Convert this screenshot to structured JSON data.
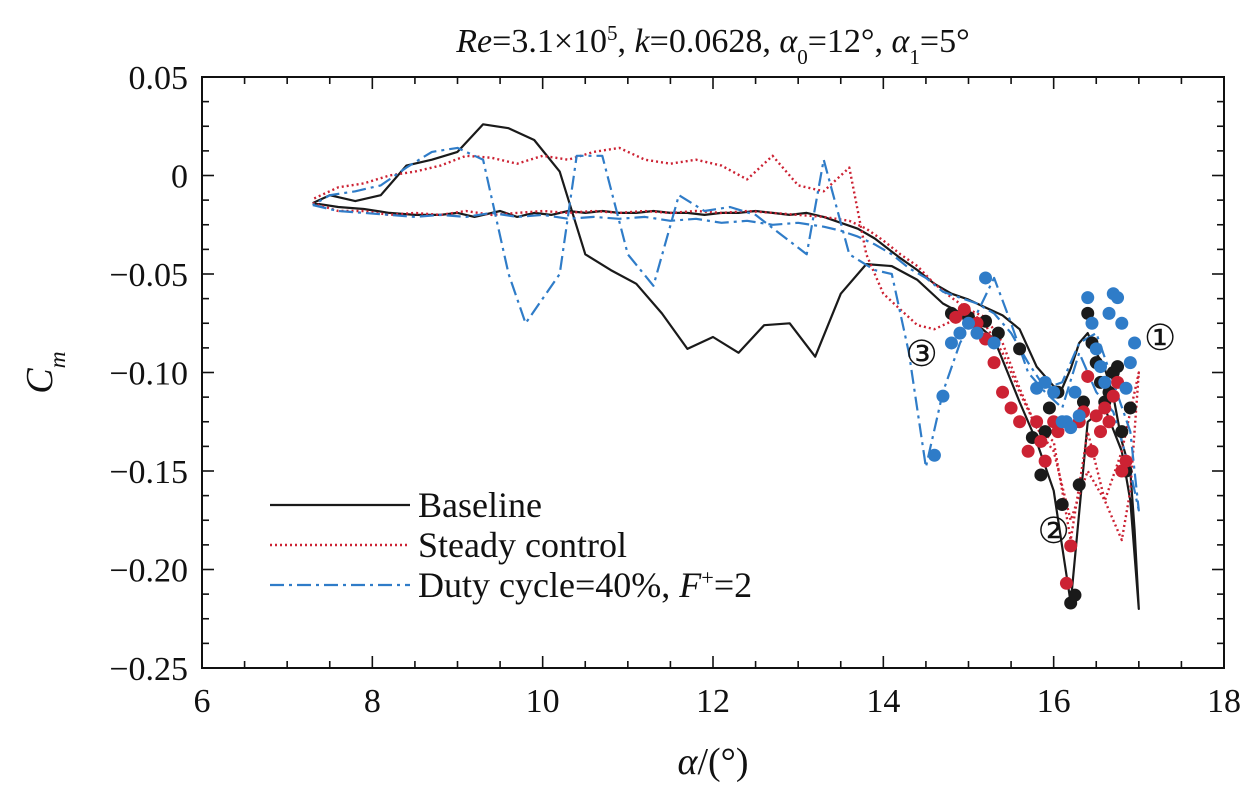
{
  "chart_data": {
    "type": "line",
    "title": {
      "parts": [
        {
          "text": "Re",
          "italic": true
        },
        {
          "text": "=3.1×10"
        },
        {
          "text": "5",
          "sup": true
        },
        {
          "text": ", "
        },
        {
          "text": "k",
          "italic": true
        },
        {
          "text": "=0.0628, "
        },
        {
          "text": "α",
          "italic": true
        },
        {
          "text": "0",
          "sub": true
        },
        {
          "text": "=12°, "
        },
        {
          "text": "α",
          "italic": true
        },
        {
          "text": "1",
          "sub": true
        },
        {
          "text": "=5°"
        }
      ]
    },
    "xlabel": {
      "parts": [
        {
          "text": "α",
          "italic": true
        },
        {
          "text": "/(°)"
        }
      ]
    },
    "ylabel": {
      "parts": [
        {
          "text": "C",
          "italic": true
        },
        {
          "text": "m",
          "italic": true,
          "sub": true
        }
      ]
    },
    "xlim": [
      6,
      18
    ],
    "ylim": [
      -0.25,
      0.05
    ],
    "xticks": [
      6,
      8,
      10,
      12,
      14,
      16,
      18
    ],
    "xtick_labels": [
      "6",
      "8",
      "10",
      "12",
      "14",
      "16",
      "18"
    ],
    "yticks": [
      0.05,
      0,
      -0.05,
      -0.1,
      -0.15,
      -0.2,
      -0.25
    ],
    "ytick_labels": [
      "0.05",
      "0",
      "−0.05",
      "−0.10",
      "−0.15",
      "−0.20",
      "−0.25"
    ],
    "minor_x_step": 0.5,
    "minor_y_step": 0.0125,
    "grid": false,
    "legend_position": "bottom-left",
    "annotations": [
      {
        "text": "①",
        "x": 17.25,
        "y": -0.082
      },
      {
        "text": "②",
        "x": 16.0,
        "y": -0.18
      },
      {
        "text": "③",
        "x": 14.45,
        "y": -0.09
      }
    ],
    "series": [
      {
        "name": "Baseline",
        "color": "#1a1a1a",
        "style": "solid",
        "x": [
          7.3,
          7.6,
          7.9,
          8.2,
          8.5,
          8.8,
          9.0,
          9.2,
          9.5,
          9.7,
          9.9,
          10.1,
          10.3,
          10.5,
          10.7,
          10.9,
          11.1,
          11.3,
          11.5,
          11.7,
          11.9,
          12.1,
          12.3,
          12.5,
          12.7,
          12.9,
          13.1,
          13.3,
          13.5,
          13.7,
          13.9,
          14.05,
          14.2,
          14.4,
          14.6,
          14.8,
          15.0,
          15.2,
          15.4,
          15.6,
          15.8,
          16.0,
          16.1,
          16.2,
          16.3,
          16.4,
          16.5,
          16.6,
          16.7,
          16.8,
          16.9,
          16.95,
          17.0,
          16.9,
          16.8,
          16.6,
          16.4,
          16.2,
          16.0,
          15.8,
          15.6,
          15.3,
          15.0,
          14.7,
          14.4,
          14.1,
          13.8,
          13.5,
          13.2,
          12.9,
          12.6,
          12.3,
          12.0,
          11.7,
          11.4,
          11.1,
          10.8,
          10.5,
          10.2,
          9.9,
          9.6,
          9.3,
          9.0,
          8.7,
          8.4,
          8.1,
          7.8,
          7.5,
          7.3
        ],
        "y": [
          -0.014,
          -0.016,
          -0.017,
          -0.019,
          -0.02,
          -0.02,
          -0.019,
          -0.021,
          -0.018,
          -0.021,
          -0.019,
          -0.02,
          -0.018,
          -0.019,
          -0.018,
          -0.019,
          -0.019,
          -0.018,
          -0.019,
          -0.019,
          -0.02,
          -0.019,
          -0.019,
          -0.018,
          -0.019,
          -0.02,
          -0.019,
          -0.021,
          -0.024,
          -0.027,
          -0.032,
          -0.037,
          -0.042,
          -0.048,
          -0.055,
          -0.06,
          -0.063,
          -0.067,
          -0.071,
          -0.078,
          -0.097,
          -0.107,
          -0.108,
          -0.098,
          -0.085,
          -0.08,
          -0.09,
          -0.098,
          -0.112,
          -0.135,
          -0.15,
          -0.18,
          -0.22,
          -0.165,
          -0.14,
          -0.118,
          -0.125,
          -0.217,
          -0.16,
          -0.135,
          -0.115,
          -0.083,
          -0.072,
          -0.065,
          -0.053,
          -0.046,
          -0.045,
          -0.06,
          -0.092,
          -0.075,
          -0.076,
          -0.09,
          -0.082,
          -0.088,
          -0.07,
          -0.055,
          -0.048,
          -0.04,
          0.002,
          0.018,
          0.024,
          0.026,
          0.012,
          0.008,
          0.005,
          -0.01,
          -0.013,
          -0.01,
          -0.014
        ]
      },
      {
        "name": "Steady control",
        "color": "#cc2233",
        "style": "dotted",
        "x": [
          7.3,
          7.6,
          7.9,
          8.2,
          8.5,
          8.8,
          9.1,
          9.4,
          9.7,
          10.0,
          10.3,
          10.6,
          10.9,
          11.2,
          11.5,
          11.8,
          12.1,
          12.4,
          12.7,
          13.0,
          13.3,
          13.6,
          13.8,
          14.0,
          14.2,
          14.4,
          14.6,
          14.8,
          15.0,
          15.2,
          15.4,
          15.6,
          15.8,
          16.0,
          16.2,
          16.4,
          16.6,
          16.8,
          16.9,
          17.0,
          16.9,
          16.8,
          16.6,
          16.4,
          16.2,
          16.0,
          15.8,
          15.6,
          15.4,
          15.2,
          15.0,
          14.8,
          14.6,
          14.4,
          14.2,
          14.0,
          13.8,
          13.6,
          13.3,
          13.0,
          12.7,
          12.4,
          12.1,
          11.8,
          11.5,
          11.2,
          10.9,
          10.6,
          10.3,
          10.0,
          9.7,
          9.4,
          9.1,
          8.8,
          8.5,
          8.2,
          7.9,
          7.6,
          7.3
        ],
        "y": [
          -0.014,
          -0.018,
          -0.018,
          -0.02,
          -0.019,
          -0.02,
          -0.018,
          -0.02,
          -0.019,
          -0.018,
          -0.019,
          -0.018,
          -0.019,
          -0.018,
          -0.019,
          -0.018,
          -0.019,
          -0.018,
          -0.019,
          -0.02,
          -0.021,
          -0.023,
          -0.027,
          -0.033,
          -0.04,
          -0.046,
          -0.055,
          -0.062,
          -0.068,
          -0.076,
          -0.09,
          -0.11,
          -0.128,
          -0.14,
          -0.175,
          -0.15,
          -0.165,
          -0.185,
          -0.16,
          -0.1,
          -0.12,
          -0.14,
          -0.165,
          -0.13,
          -0.185,
          -0.135,
          -0.128,
          -0.108,
          -0.085,
          -0.072,
          -0.068,
          -0.074,
          -0.078,
          -0.076,
          -0.068,
          -0.06,
          -0.04,
          0.004,
          -0.008,
          -0.005,
          0.01,
          -0.002,
          0.005,
          0.008,
          0.006,
          0.008,
          0.014,
          0.012,
          0.008,
          0.01,
          0.006,
          0.009,
          0.01,
          0.005,
          0.002,
          0.0,
          -0.004,
          -0.006,
          -0.012
        ]
      },
      {
        "name": "Duty cycle=40%, F⁺=2",
        "legend_parts": [
          {
            "text": "Duty cycle=40%, "
          },
          {
            "text": "F",
            "italic": true
          },
          {
            "text": "+",
            "sup": true
          },
          {
            "text": "=2"
          }
        ],
        "color": "#2f7cc8",
        "style": "dashdot",
        "x": [
          7.3,
          7.6,
          7.9,
          8.2,
          8.5,
          8.8,
          9.1,
          9.4,
          9.7,
          10.0,
          10.3,
          10.6,
          10.9,
          11.2,
          11.5,
          11.8,
          12.1,
          12.4,
          12.7,
          13.0,
          13.3,
          13.5,
          13.7,
          13.9,
          14.1,
          14.3,
          14.5,
          14.7,
          14.9,
          15.1,
          15.3,
          15.5,
          15.7,
          15.9,
          16.1,
          16.3,
          16.5,
          16.7,
          16.9,
          17.0,
          16.9,
          16.7,
          16.5,
          16.3,
          16.1,
          15.9,
          15.7,
          15.5,
          15.3,
          15.1,
          14.9,
          14.7,
          14.5,
          14.3,
          14.1,
          13.9,
          13.6,
          13.3,
          13.1,
          12.8,
          12.5,
          12.2,
          11.9,
          11.6,
          11.3,
          11.0,
          10.7,
          10.4,
          10.2,
          9.8,
          9.6,
          9.3,
          9.0,
          8.7,
          8.4,
          8.1,
          7.8,
          7.5,
          7.3
        ],
        "y": [
          -0.015,
          -0.018,
          -0.019,
          -0.02,
          -0.021,
          -0.02,
          -0.021,
          -0.019,
          -0.021,
          -0.02,
          -0.022,
          -0.021,
          -0.022,
          -0.021,
          -0.023,
          -0.022,
          -0.024,
          -0.023,
          -0.025,
          -0.024,
          -0.026,
          -0.028,
          -0.031,
          -0.035,
          -0.04,
          -0.047,
          -0.052,
          -0.059,
          -0.062,
          -0.065,
          -0.07,
          -0.08,
          -0.095,
          -0.108,
          -0.105,
          -0.085,
          -0.08,
          -0.105,
          -0.13,
          -0.17,
          -0.15,
          -0.12,
          -0.11,
          -0.09,
          -0.118,
          -0.11,
          -0.1,
          -0.075,
          -0.052,
          -0.07,
          -0.085,
          -0.11,
          -0.148,
          -0.09,
          -0.05,
          -0.048,
          -0.04,
          0.008,
          -0.04,
          -0.03,
          -0.02,
          -0.016,
          -0.018,
          -0.01,
          -0.056,
          -0.04,
          0.01,
          0.01,
          -0.05,
          -0.075,
          -0.05,
          0.008,
          0.014,
          0.012,
          0.004,
          -0.005,
          -0.008,
          -0.01,
          -0.015
        ]
      }
    ],
    "marker_series": [
      {
        "name": "Baseline",
        "color": "#1a1a1a",
        "points": [
          [
            14.8,
            -0.07
          ],
          [
            15.0,
            -0.072
          ],
          [
            15.2,
            -0.074
          ],
          [
            15.35,
            -0.08
          ],
          [
            15.6,
            -0.088
          ],
          [
            15.75,
            -0.133
          ],
          [
            15.85,
            -0.152
          ],
          [
            15.9,
            -0.13
          ],
          [
            15.95,
            -0.118
          ],
          [
            16.05,
            -0.11
          ],
          [
            16.1,
            -0.167
          ],
          [
            16.2,
            -0.217
          ],
          [
            16.25,
            -0.213
          ],
          [
            16.3,
            -0.157
          ],
          [
            16.35,
            -0.115
          ],
          [
            16.4,
            -0.07
          ],
          [
            16.45,
            -0.085
          ],
          [
            16.5,
            -0.095
          ],
          [
            16.55,
            -0.105
          ],
          [
            16.6,
            -0.115
          ],
          [
            16.65,
            -0.11
          ],
          [
            16.7,
            -0.1
          ],
          [
            16.75,
            -0.097
          ],
          [
            16.8,
            -0.13
          ],
          [
            16.85,
            -0.15
          ],
          [
            16.9,
            -0.118
          ]
        ]
      },
      {
        "name": "Steady control",
        "color": "#cc2233",
        "points": [
          [
            14.85,
            -0.072
          ],
          [
            14.95,
            -0.068
          ],
          [
            15.1,
            -0.075
          ],
          [
            15.2,
            -0.083
          ],
          [
            15.3,
            -0.095
          ],
          [
            15.4,
            -0.11
          ],
          [
            15.5,
            -0.118
          ],
          [
            15.6,
            -0.125
          ],
          [
            15.7,
            -0.14
          ],
          [
            15.8,
            -0.125
          ],
          [
            15.85,
            -0.135
          ],
          [
            15.9,
            -0.145
          ],
          [
            16.0,
            -0.125
          ],
          [
            16.05,
            -0.13
          ],
          [
            16.15,
            -0.207
          ],
          [
            16.2,
            -0.188
          ],
          [
            16.3,
            -0.125
          ],
          [
            16.35,
            -0.12
          ],
          [
            16.4,
            -0.102
          ],
          [
            16.45,
            -0.14
          ],
          [
            16.5,
            -0.122
          ],
          [
            16.55,
            -0.13
          ],
          [
            16.6,
            -0.118
          ],
          [
            16.65,
            -0.125
          ],
          [
            16.7,
            -0.112
          ],
          [
            16.75,
            -0.105
          ],
          [
            16.8,
            -0.15
          ],
          [
            16.85,
            -0.145
          ]
        ]
      },
      {
        "name": "Duty cycle=40%, F⁺=2",
        "color": "#2f7cc8",
        "points": [
          [
            14.6,
            -0.142
          ],
          [
            14.7,
            -0.112
          ],
          [
            14.8,
            -0.085
          ],
          [
            14.9,
            -0.08
          ],
          [
            15.0,
            -0.075
          ],
          [
            15.1,
            -0.08
          ],
          [
            15.2,
            -0.052
          ],
          [
            15.3,
            -0.085
          ],
          [
            15.8,
            -0.108
          ],
          [
            15.9,
            -0.105
          ],
          [
            16.0,
            -0.11
          ],
          [
            16.1,
            -0.125
          ],
          [
            16.15,
            -0.125
          ],
          [
            16.2,
            -0.128
          ],
          [
            16.25,
            -0.11
          ],
          [
            16.3,
            -0.122
          ],
          [
            16.4,
            -0.062
          ],
          [
            16.45,
            -0.075
          ],
          [
            16.5,
            -0.088
          ],
          [
            16.55,
            -0.097
          ],
          [
            16.6,
            -0.105
          ],
          [
            16.65,
            -0.07
          ],
          [
            16.7,
            -0.06
          ],
          [
            16.75,
            -0.062
          ],
          [
            16.8,
            -0.075
          ],
          [
            16.85,
            -0.108
          ],
          [
            16.9,
            -0.095
          ],
          [
            16.95,
            -0.085
          ]
        ]
      }
    ]
  }
}
